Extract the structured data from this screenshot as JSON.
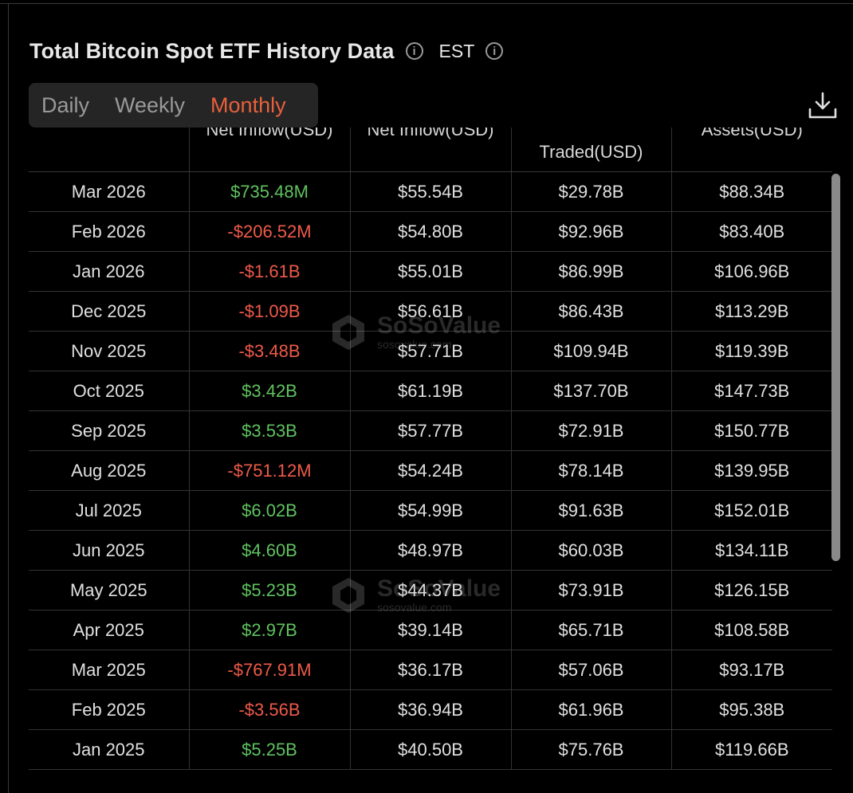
{
  "header": {
    "title": "Total Bitcoin Spot ETF History Data",
    "timezone": "EST"
  },
  "tabs": [
    "Daily",
    "Weekly",
    "Monthly"
  ],
  "active_tab": "Monthly",
  "columns": [
    "",
    "Net Inflow(USD)",
    "Net Inflow(USD)",
    "Traded(USD)",
    "Assets(USD)"
  ],
  "rows": [
    {
      "date": "Mar 2026",
      "inflow": "$735.48M",
      "sign": "pos",
      "cum": "$55.54B",
      "traded": "$29.78B",
      "assets": "$88.34B"
    },
    {
      "date": "Feb 2026",
      "inflow": "-$206.52M",
      "sign": "neg",
      "cum": "$54.80B",
      "traded": "$92.96B",
      "assets": "$83.40B"
    },
    {
      "date": "Jan 2026",
      "inflow": "-$1.61B",
      "sign": "neg",
      "cum": "$55.01B",
      "traded": "$86.99B",
      "assets": "$106.96B"
    },
    {
      "date": "Dec 2025",
      "inflow": "-$1.09B",
      "sign": "neg",
      "cum": "$56.61B",
      "traded": "$86.43B",
      "assets": "$113.29B"
    },
    {
      "date": "Nov 2025",
      "inflow": "-$3.48B",
      "sign": "neg",
      "cum": "$57.71B",
      "traded": "$109.94B",
      "assets": "$119.39B"
    },
    {
      "date": "Oct 2025",
      "inflow": "$3.42B",
      "sign": "pos",
      "cum": "$61.19B",
      "traded": "$137.70B",
      "assets": "$147.73B"
    },
    {
      "date": "Sep 2025",
      "inflow": "$3.53B",
      "sign": "pos",
      "cum": "$57.77B",
      "traded": "$72.91B",
      "assets": "$150.77B"
    },
    {
      "date": "Aug 2025",
      "inflow": "-$751.12M",
      "sign": "neg",
      "cum": "$54.24B",
      "traded": "$78.14B",
      "assets": "$139.95B"
    },
    {
      "date": "Jul 2025",
      "inflow": "$6.02B",
      "sign": "pos",
      "cum": "$54.99B",
      "traded": "$91.63B",
      "assets": "$152.01B"
    },
    {
      "date": "Jun 2025",
      "inflow": "$4.60B",
      "sign": "pos",
      "cum": "$48.97B",
      "traded": "$60.03B",
      "assets": "$134.11B"
    },
    {
      "date": "May 2025",
      "inflow": "$5.23B",
      "sign": "pos",
      "cum": "$44.37B",
      "traded": "$73.91B",
      "assets": "$126.15B"
    },
    {
      "date": "Apr 2025",
      "inflow": "$2.97B",
      "sign": "pos",
      "cum": "$39.14B",
      "traded": "$65.71B",
      "assets": "$108.58B"
    },
    {
      "date": "Mar 2025",
      "inflow": "-$767.91M",
      "sign": "neg",
      "cum": "$36.17B",
      "traded": "$57.06B",
      "assets": "$93.17B"
    },
    {
      "date": "Feb 2025",
      "inflow": "-$3.56B",
      "sign": "neg",
      "cum": "$36.94B",
      "traded": "$61.96B",
      "assets": "$95.38B"
    },
    {
      "date": "Jan 2025",
      "inflow": "$5.25B",
      "sign": "pos",
      "cum": "$40.50B",
      "traded": "$75.76B",
      "assets": "$119.66B"
    }
  ],
  "watermark": {
    "brand": "SoSoValue",
    "url": "sosovalue.com"
  },
  "colors": {
    "positive": "#5fc25f",
    "negative": "#ef5a4a",
    "accent": "#e8603c",
    "background": "#000000"
  },
  "icons": {
    "info": "info-circle-icon",
    "download": "download-icon"
  }
}
